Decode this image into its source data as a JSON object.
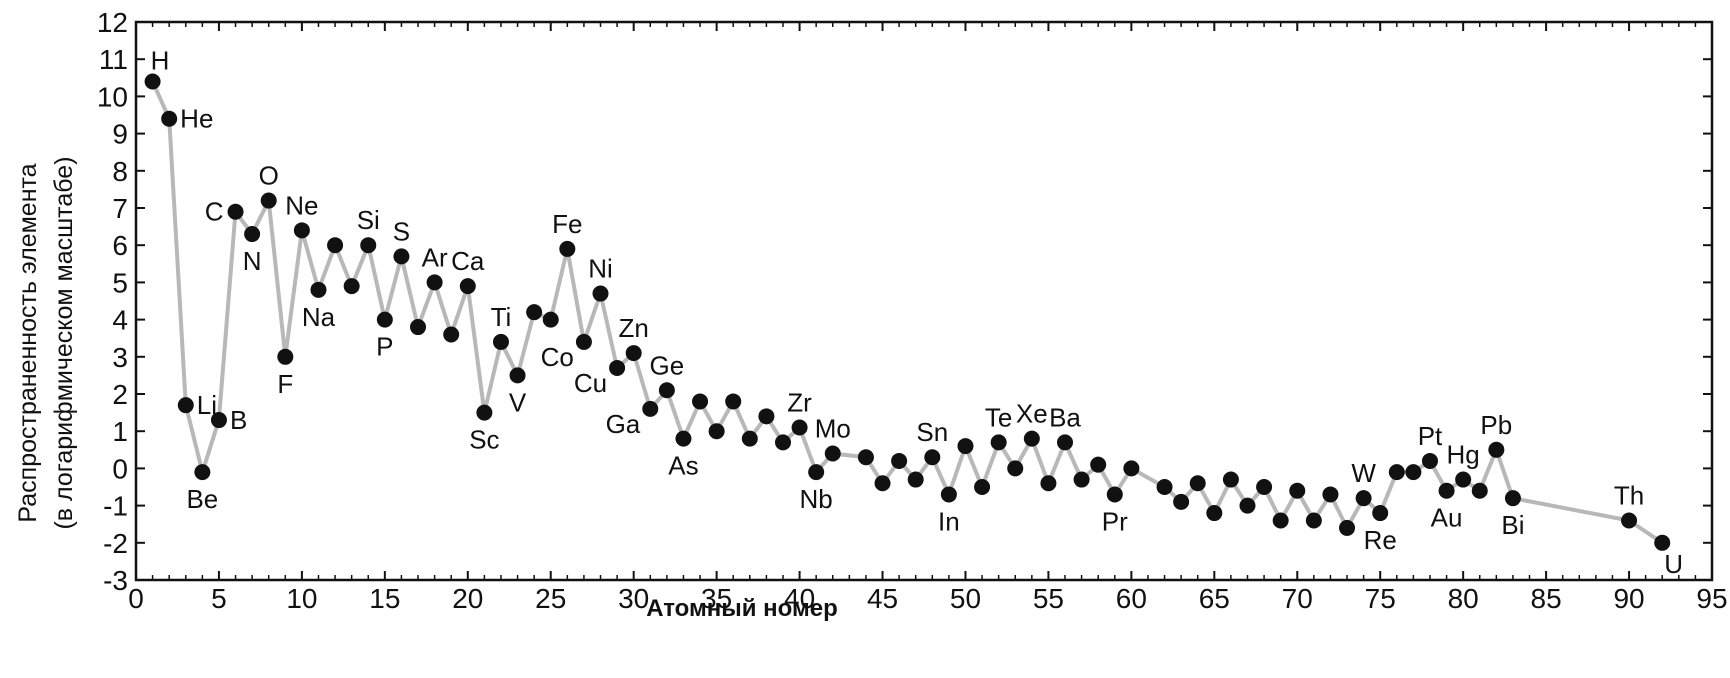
{
  "chart_data": {
    "type": "line",
    "title": "",
    "xlabel": "Атомный номер",
    "ylabel_line1": "Распространенность элемента",
    "ylabel_line2": "(в логарифмическом масштабе)",
    "xlim": [
      0,
      95
    ],
    "ylim": [
      -3,
      12
    ],
    "xticks": [
      0,
      5,
      10,
      15,
      20,
      25,
      30,
      35,
      40,
      45,
      50,
      55,
      60,
      65,
      70,
      75,
      80,
      85,
      90,
      95
    ],
    "yticks": [
      12,
      11,
      10,
      9,
      8,
      7,
      6,
      5,
      4,
      3,
      2,
      1,
      0,
      -1,
      -2,
      -3
    ],
    "grid": false,
    "line_color": "#b8b8b8",
    "point_color": "#111111",
    "series": [
      {
        "points": [
          {
            "x": 1,
            "y": 10.4,
            "label": "H"
          },
          {
            "x": 2,
            "y": 9.4,
            "label": "He"
          },
          {
            "x": 3,
            "y": 1.7,
            "label": "Li"
          },
          {
            "x": 4,
            "y": -0.1,
            "label": "Be"
          },
          {
            "x": 5,
            "y": 1.3,
            "label": "B"
          },
          {
            "x": 6,
            "y": 6.9,
            "label": "C"
          },
          {
            "x": 7,
            "y": 6.3,
            "label": "N"
          },
          {
            "x": 8,
            "y": 7.2,
            "label": "O"
          },
          {
            "x": 9,
            "y": 3.0,
            "label": "F"
          },
          {
            "x": 10,
            "y": 6.4,
            "label": "Ne"
          },
          {
            "x": 11,
            "y": 4.8,
            "label": "Na"
          },
          {
            "x": 12,
            "y": 6.0
          },
          {
            "x": 13,
            "y": 4.9
          },
          {
            "x": 14,
            "y": 6.0,
            "label": "Si"
          },
          {
            "x": 15,
            "y": 4.0,
            "label": "P"
          },
          {
            "x": 16,
            "y": 5.7,
            "label": "S"
          },
          {
            "x": 17,
            "y": 3.8
          },
          {
            "x": 18,
            "y": 5.0,
            "label": "Ar"
          },
          {
            "x": 19,
            "y": 3.6
          },
          {
            "x": 20,
            "y": 4.9,
            "label": "Ca"
          },
          {
            "x": 21,
            "y": 1.5,
            "label": "Sc"
          },
          {
            "x": 22,
            "y": 3.4,
            "label": "Ti"
          },
          {
            "x": 23,
            "y": 2.5,
            "label": "V"
          },
          {
            "x": 24,
            "y": 4.2
          },
          {
            "x": 25,
            "y": 4.0
          },
          {
            "x": 26,
            "y": 5.9,
            "label": "Fe"
          },
          {
            "x": 27,
            "y": 3.4,
            "label": "Co"
          },
          {
            "x": 28,
            "y": 4.7,
            "label": "Ni"
          },
          {
            "x": 29,
            "y": 2.7,
            "label": "Cu"
          },
          {
            "x": 30,
            "y": 3.1,
            "label": "Zn"
          },
          {
            "x": 31,
            "y": 1.6,
            "label": "Ga"
          },
          {
            "x": 32,
            "y": 2.1,
            "label": "Ge"
          },
          {
            "x": 33,
            "y": 0.8,
            "label": "As"
          },
          {
            "x": 34,
            "y": 1.8
          },
          {
            "x": 35,
            "y": 1.0
          },
          {
            "x": 36,
            "y": 1.8
          },
          {
            "x": 37,
            "y": 0.8
          },
          {
            "x": 38,
            "y": 1.4
          },
          {
            "x": 39,
            "y": 0.7
          },
          {
            "x": 40,
            "y": 1.1,
            "label": "Zr"
          },
          {
            "x": 41,
            "y": -0.1,
            "label": "Nb"
          },
          {
            "x": 42,
            "y": 0.4,
            "label": "Mo"
          },
          {
            "x": 44,
            "y": 0.3
          },
          {
            "x": 45,
            "y": -0.4
          },
          {
            "x": 46,
            "y": 0.2
          },
          {
            "x": 47,
            "y": -0.3
          },
          {
            "x": 48,
            "y": 0.3,
            "label": "Sn"
          },
          {
            "x": 49,
            "y": -0.7,
            "label": "In"
          },
          {
            "x": 50,
            "y": 0.6
          },
          {
            "x": 51,
            "y": -0.5
          },
          {
            "x": 52,
            "y": 0.7,
            "label": "Te"
          },
          {
            "x": 53,
            "y": 0.0
          },
          {
            "x": 54,
            "y": 0.8,
            "label": "Xe"
          },
          {
            "x": 55,
            "y": -0.4
          },
          {
            "x": 56,
            "y": 0.7,
            "label": "Ba"
          },
          {
            "x": 57,
            "y": -0.3
          },
          {
            "x": 58,
            "y": 0.1
          },
          {
            "x": 59,
            "y": -0.7,
            "label": "Pr"
          },
          {
            "x": 60,
            "y": 0.0
          },
          {
            "x": 62,
            "y": -0.5
          },
          {
            "x": 63,
            "y": -0.9
          },
          {
            "x": 64,
            "y": -0.4
          },
          {
            "x": 65,
            "y": -1.2
          },
          {
            "x": 66,
            "y": -0.3
          },
          {
            "x": 67,
            "y": -1.0
          },
          {
            "x": 68,
            "y": -0.5
          },
          {
            "x": 69,
            "y": -1.4
          },
          {
            "x": 70,
            "y": -0.6
          },
          {
            "x": 71,
            "y": -1.4
          },
          {
            "x": 72,
            "y": -0.7
          },
          {
            "x": 73,
            "y": -1.6
          },
          {
            "x": 74,
            "y": -0.8,
            "label": "W"
          },
          {
            "x": 75,
            "y": -1.2,
            "label": "Re"
          },
          {
            "x": 76,
            "y": -0.1
          },
          {
            "x": 77,
            "y": -0.1
          },
          {
            "x": 78,
            "y": 0.2,
            "label": "Pt"
          },
          {
            "x": 79,
            "y": -0.6,
            "label": "Au"
          },
          {
            "x": 80,
            "y": -0.3,
            "label": "Hg"
          },
          {
            "x": 81,
            "y": -0.6
          },
          {
            "x": 82,
            "y": 0.5,
            "label": "Pb"
          },
          {
            "x": 83,
            "y": -0.8,
            "label": "Bi"
          },
          {
            "x": 90,
            "y": -1.4,
            "label": "Th"
          },
          {
            "x": 92,
            "y": -2.0,
            "label": "U"
          }
        ]
      }
    ]
  }
}
